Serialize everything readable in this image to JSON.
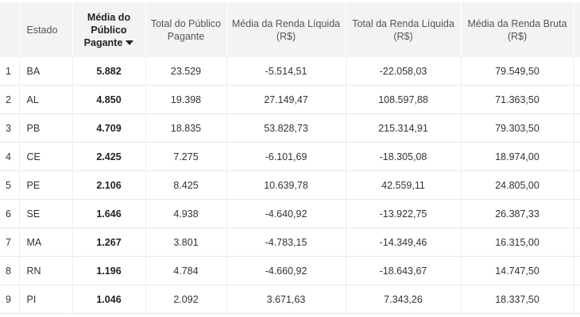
{
  "table": {
    "columns": [
      "",
      "Estado",
      "Média do Público Pagante",
      "Total do Público Pagante",
      "Média da Renda Líquida (R$)",
      "Total da Renda Líquida (R$)",
      "Média da Renda Bruta (R$)",
      ""
    ],
    "sorted_column": "Média do Público Pagante",
    "sort_direction": "descending",
    "rows": [
      [
        "1",
        "BA",
        "5.882",
        "23.529",
        "-5.514,51",
        "-22.058,03",
        "79.549,50"
      ],
      [
        "2",
        "AL",
        "4.850",
        "19.398",
        "27.149,47",
        "108.597,88",
        "71.363,50"
      ],
      [
        "3",
        "PB",
        "4.709",
        "18.835",
        "53.828,73",
        "215.314,91",
        "79.303,50"
      ],
      [
        "4",
        "CE",
        "2.425",
        "7.275",
        "-6.101,69",
        "-18.305,08",
        "18.974,00"
      ],
      [
        "5",
        "PE",
        "2.106",
        "8.425",
        "10.639,78",
        "42.559,11",
        "24.805,00"
      ],
      [
        "6",
        "SE",
        "1.646",
        "4.938",
        "-4.640,92",
        "-13.922,75",
        "26.387,33"
      ],
      [
        "7",
        "MA",
        "1.267",
        "3.801",
        "-4.783,15",
        "-14.349,46",
        "16.315,00"
      ],
      [
        "8",
        "RN",
        "1.196",
        "4.784",
        "-4.660,92",
        "-18.643,67",
        "14.747,50"
      ],
      [
        "9",
        "PI",
        "1.046",
        "2.092",
        "3.671,63",
        "7.343,26",
        "18.337,50"
      ]
    ]
  }
}
